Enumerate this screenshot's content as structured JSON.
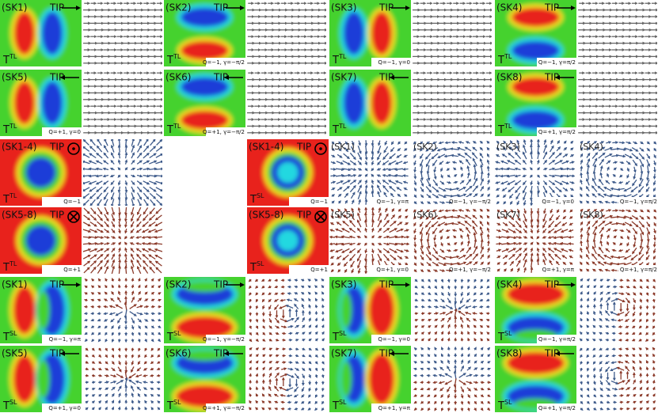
{
  "rows": [
    {
      "panels": [
        {
          "label": "(SK1)",
          "tip": "TIP",
          "t": "T",
          "tsup": "TL"
        },
        {
          "label": "(SK2)",
          "tip": "TIP",
          "t": "T",
          "tsup": "TL",
          "q": "Q=−1, γ=−π/2"
        },
        {
          "label": "(SK3)",
          "tip": "TIP",
          "t": "T",
          "tsup": "TL",
          "q": "Q=−1, γ=0"
        },
        {
          "label": "(SK4)",
          "tip": "TIP",
          "t": "T",
          "tsup": "TL",
          "q": "Q=−1, γ=π/2"
        }
      ]
    },
    {
      "panels": [
        {
          "label": "(SK5)",
          "tip": "TIP",
          "t": "T",
          "tsup": "TL",
          "q": "Q=+1, γ=0"
        },
        {
          "label": "(SK6)",
          "tip": "TIP",
          "t": "T",
          "tsup": "TL",
          "q": "Q=+1, γ=−π/2"
        },
        {
          "label": "(SK7)",
          "tip": "TIP",
          "t": "T",
          "tsup": "TL"
        },
        {
          "label": "(SK8)",
          "tip": "TIP",
          "t": "T",
          "tsup": "TL",
          "q": "Q=+1, γ=π/2"
        }
      ]
    },
    {
      "panels": [
        {
          "label": "(SK1-4)",
          "tip": "TIP",
          "t": "T",
          "tsup": "TL",
          "q": "Q=−1"
        },
        {
          "label": "(SK1-4)",
          "tip": "TIP",
          "t": "T",
          "tsup": "SL",
          "q": "Q=−1"
        }
      ],
      "fields": [
        {
          "label": "(SK1)",
          "q": "Q=−1, γ=π"
        },
        {
          "label": "(SK2)",
          "q": "Q=−1, γ=−π/2"
        },
        {
          "label": "(SK3)",
          "q": "Q=−1, γ=0"
        },
        {
          "label": "(SK4)",
          "q": "Q=−1, γ=π/2"
        }
      ]
    },
    {
      "panels": [
        {
          "label": "(SK5-8)",
          "tip": "TIP",
          "t": "T",
          "tsup": "TL",
          "q": "Q=+1"
        },
        {
          "label": "(SK5-8)",
          "tip": "TIP",
          "t": "T",
          "tsup": "SL",
          "q": "Q=+1"
        }
      ],
      "fields": [
        {
          "label": "(SK5)",
          "q": "Q=+1, γ=0"
        },
        {
          "label": "(SK6)",
          "q": "Q=+1, γ=−π/2"
        },
        {
          "label": "(SK7)",
          "q": "Q=+1, γ=π"
        },
        {
          "label": "(SK8)",
          "q": "Q=+1, γ=π/2"
        }
      ]
    },
    {
      "panels": [
        {
          "label": "(SK1)",
          "tip": "TIP",
          "t": "T",
          "tsup": "SL",
          "q": "Q=−1, γ=π"
        },
        {
          "label": "(SK2)",
          "tip": "TIP",
          "t": "T",
          "tsup": "SL",
          "q": "Q=−1, γ=−π/2"
        },
        {
          "label": "(SK3)",
          "tip": "TIP",
          "t": "T",
          "tsup": "SL",
          "q": "Q=−1, γ=0"
        },
        {
          "label": "(SK4)",
          "tip": "TIP",
          "t": "T",
          "tsup": "SL",
          "q": "Q=−1, γ=π/2"
        }
      ]
    },
    {
      "panels": [
        {
          "label": "(SK5)",
          "tip": "TIP",
          "t": "T",
          "tsup": "SL",
          "q": "Q=+1, γ=0"
        },
        {
          "label": "(SK6)",
          "tip": "TIP",
          "t": "T",
          "tsup": "SL",
          "q": "Q=+1, γ=−π/2"
        },
        {
          "label": "(SK7)",
          "tip": "TIP",
          "t": "T",
          "tsup": "SL",
          "q": "Q=+1, γ=π"
        },
        {
          "label": "(SK8)",
          "tip": "TIP",
          "t": "T",
          "tsup": "SL",
          "q": "Q=+1, γ=π/2"
        }
      ]
    }
  ]
}
